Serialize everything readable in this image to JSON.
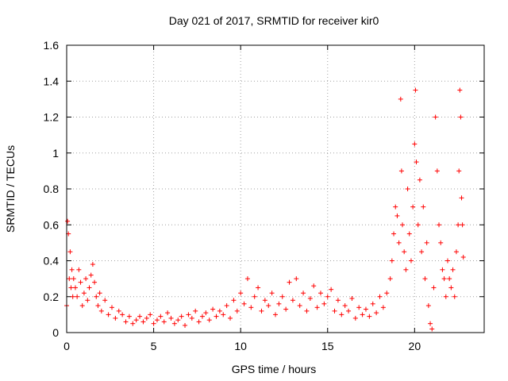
{
  "chart_data": {
    "type": "scatter",
    "title": "Day 021 of 2017, SRMTID for receiver kir0",
    "xlabel": "GPS time / hours",
    "ylabel": "SRMTID / TECUs",
    "xlim": [
      0,
      24
    ],
    "ylim": [
      0,
      1.6
    ],
    "xticks": [
      0,
      5,
      10,
      15,
      20
    ],
    "xtick_labels": [
      "0",
      "5",
      "10",
      "15",
      "20"
    ],
    "yticks": [
      0,
      0.2,
      0.4,
      0.6,
      0.8,
      1.0,
      1.2,
      1.4,
      1.6
    ],
    "ytick_labels": [
      "0",
      "0.2",
      "0.4",
      "0.6",
      "0.8",
      "1",
      "1.2",
      "1.4",
      "1.6"
    ],
    "grid": true,
    "marker": "+",
    "color": "#ff0000",
    "series": [
      {
        "name": "SRMTID",
        "x": [
          0.0,
          0.05,
          0.1,
          0.15,
          0.2,
          0.25,
          0.3,
          0.35,
          0.4,
          0.5,
          0.6,
          0.7,
          0.8,
          0.9,
          1.0,
          1.1,
          1.2,
          1.3,
          1.4,
          1.5,
          1.6,
          1.7,
          1.8,
          1.9,
          2.0,
          2.2,
          2.4,
          2.6,
          2.8,
          3.0,
          3.2,
          3.4,
          3.6,
          3.8,
          4.0,
          4.2,
          4.4,
          4.6,
          4.8,
          5.0,
          5.2,
          5.4,
          5.6,
          5.8,
          6.0,
          6.2,
          6.4,
          6.6,
          6.8,
          7.0,
          7.2,
          7.4,
          7.6,
          7.8,
          8.0,
          8.2,
          8.4,
          8.6,
          8.8,
          9.0,
          9.2,
          9.4,
          9.6,
          9.8,
          10.0,
          10.2,
          10.4,
          10.6,
          10.8,
          11.0,
          11.2,
          11.4,
          11.6,
          11.8,
          12.0,
          12.2,
          12.4,
          12.6,
          12.8,
          13.0,
          13.2,
          13.4,
          13.6,
          13.8,
          14.0,
          14.2,
          14.4,
          14.6,
          14.8,
          15.0,
          15.2,
          15.4,
          15.6,
          15.8,
          16.0,
          16.2,
          16.4,
          16.6,
          16.8,
          17.0,
          17.2,
          17.4,
          17.6,
          17.8,
          18.0,
          18.2,
          18.4,
          18.6,
          18.7,
          18.8,
          18.9,
          19.0,
          19.1,
          19.2,
          19.25,
          19.3,
          19.4,
          19.5,
          19.6,
          19.7,
          19.8,
          19.9,
          20.0,
          20.05,
          20.1,
          20.2,
          20.3,
          20.4,
          20.5,
          20.6,
          20.7,
          20.8,
          20.9,
          21.0,
          21.1,
          21.2,
          21.3,
          21.4,
          21.5,
          21.6,
          21.7,
          21.8,
          21.9,
          22.0,
          22.1,
          22.2,
          22.3,
          22.4,
          22.5,
          22.55,
          22.6,
          22.65,
          22.7,
          22.75,
          22.8
        ],
        "y": [
          0.15,
          0.62,
          0.55,
          0.3,
          0.45,
          0.25,
          0.35,
          0.2,
          0.3,
          0.25,
          0.2,
          0.35,
          0.28,
          0.15,
          0.22,
          0.3,
          0.18,
          0.25,
          0.32,
          0.38,
          0.28,
          0.2,
          0.15,
          0.22,
          0.12,
          0.18,
          0.1,
          0.14,
          0.08,
          0.12,
          0.1,
          0.06,
          0.09,
          0.05,
          0.07,
          0.09,
          0.06,
          0.08,
          0.1,
          0.05,
          0.07,
          0.09,
          0.06,
          0.11,
          0.08,
          0.05,
          0.07,
          0.09,
          0.04,
          0.1,
          0.08,
          0.12,
          0.06,
          0.09,
          0.11,
          0.07,
          0.13,
          0.09,
          0.12,
          0.1,
          0.15,
          0.08,
          0.18,
          0.12,
          0.22,
          0.16,
          0.3,
          0.14,
          0.2,
          0.25,
          0.12,
          0.18,
          0.15,
          0.22,
          0.1,
          0.16,
          0.2,
          0.13,
          0.28,
          0.18,
          0.3,
          0.15,
          0.22,
          0.12,
          0.19,
          0.26,
          0.14,
          0.22,
          0.16,
          0.2,
          0.24,
          0.12,
          0.18,
          0.1,
          0.15,
          0.12,
          0.19,
          0.08,
          0.14,
          0.1,
          0.13,
          0.09,
          0.16,
          0.11,
          0.2,
          0.14,
          0.22,
          0.3,
          0.4,
          0.55,
          0.7,
          0.65,
          0.5,
          1.3,
          0.9,
          0.6,
          0.45,
          0.35,
          0.8,
          0.55,
          0.4,
          0.7,
          1.05,
          1.35,
          0.95,
          0.6,
          0.85,
          0.45,
          0.7,
          0.3,
          0.5,
          0.15,
          0.05,
          0.02,
          0.25,
          1.2,
          0.9,
          0.6,
          0.5,
          0.35,
          0.3,
          0.2,
          0.4,
          0.3,
          0.25,
          0.35,
          0.2,
          0.45,
          0.6,
          0.9,
          1.35,
          1.2,
          0.75,
          0.6,
          0.42
        ]
      }
    ]
  }
}
